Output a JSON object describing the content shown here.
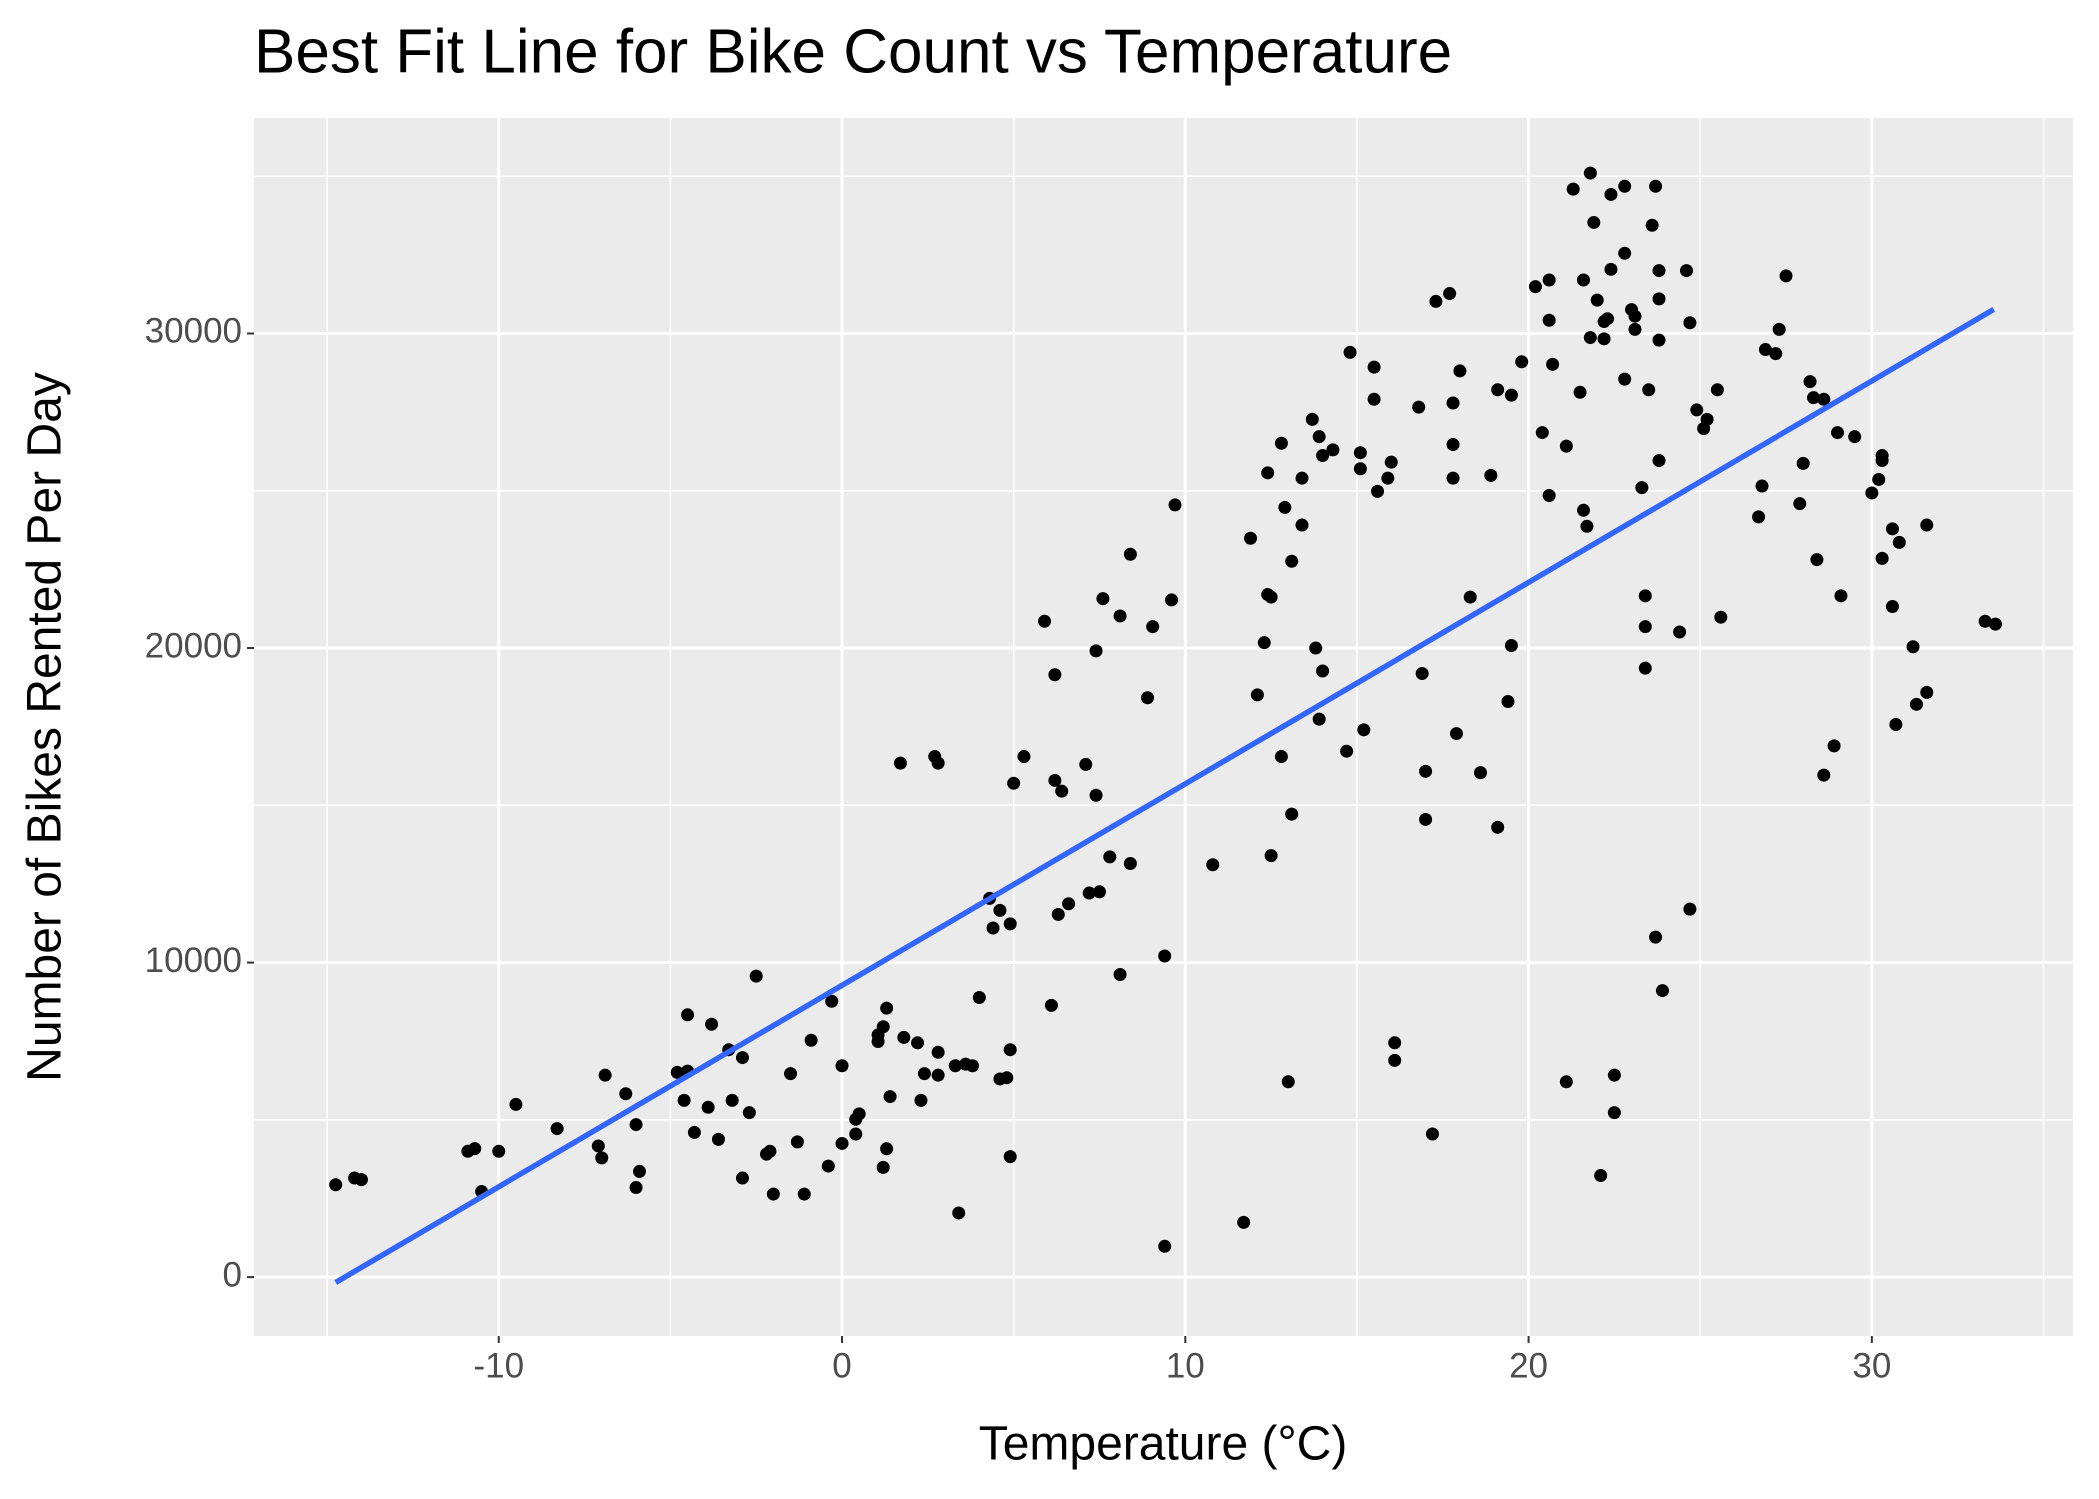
{
  "chart_data": {
    "type": "scatter",
    "title": "Best Fit Line for Bike Count vs Temperature",
    "x_label": "Temperature (°C)",
    "y_label": "Number of Bikes Rented Per Day",
    "xlim": [
      -17.13,
      35.86
    ],
    "ylim": [
      -1872,
      36851
    ],
    "xticks": [
      -10,
      0,
      10,
      20,
      30
    ],
    "yticks": [
      0,
      10000,
      20000,
      30000
    ],
    "grid": true,
    "color": "#000000",
    "x": [
      -14.75,
      -14.2,
      -14.0,
      -10.9,
      -10.7,
      -10.5,
      -10.0,
      -9.5,
      -8.3,
      -7.1,
      -7.0,
      -6.9,
      -6.3,
      -6.0,
      -5.9,
      -6.0,
      -4.8,
      -4.5,
      -4.5,
      -4.6,
      -4.3,
      -3.8,
      -3.9,
      -3.6,
      -3.3,
      -3.2,
      -2.9,
      -2.9,
      -2.7,
      -2.5,
      -2.2,
      -2.1,
      -2.0,
      -1.5,
      -1.3,
      -1.1,
      -0.9,
      -0.4,
      -0.3,
      0.0,
      0.0,
      0.4,
      0.5,
      0.4,
      1.05,
      1.05,
      1.2,
      1.2,
      1.3,
      1.3,
      1.4,
      1.7,
      1.8,
      2.2,
      2.3,
      2.4,
      2.7,
      2.8,
      2.8,
      2.8,
      3.3,
      3.4,
      3.6,
      3.8,
      4.0,
      4.3,
      4.4,
      4.6,
      4.6,
      4.8,
      4.9,
      4.9,
      4.9,
      5.0,
      5.3,
      5.9,
      6.1,
      6.2,
      6.2,
      6.4,
      6.3,
      6.6,
      7.1,
      7.2,
      7.4,
      7.4,
      7.5,
      7.6,
      7.8,
      8.1,
      8.1,
      8.4,
      8.4,
      8.9,
      9.05,
      9.4,
      9.4,
      9.6,
      9.7,
      10.8,
      11.7,
      11.9,
      12.1,
      12.3,
      12.4,
      12.5,
      12.4,
      12.5,
      12.8,
      12.8,
      12.9,
      13.0,
      13.1,
      13.1,
      13.4,
      13.4,
      13.7,
      13.8,
      13.9,
      13.9,
      14.0,
      14.0,
      14.3,
      14.7,
      14.8,
      15.1,
      15.1,
      15.2,
      15.5,
      15.5,
      15.6,
      15.9,
      16.0,
      16.1,
      16.1,
      16.8,
      16.9,
      17.0,
      17.0,
      17.2,
      17.3,
      17.7,
      17.8,
      17.8,
      17.8,
      17.9,
      18.0,
      18.3,
      18.6,
      18.9,
      19.1,
      19.1,
      19.4,
      19.5,
      19.5,
      19.8,
      20.2,
      20.4,
      20.6,
      20.6,
      20.7,
      20.6,
      21.1,
      21.1,
      21.3,
      21.5,
      21.6,
      21.6,
      21.7,
      21.8,
      21.8,
      21.9,
      22.0,
      22.1,
      22.2,
      22.2,
      22.3,
      22.4,
      22.4,
      22.5,
      22.5,
      22.8,
      22.8,
      22.8,
      23.0,
      23.1,
      23.1,
      23.3,
      23.4,
      23.4,
      23.4,
      23.5,
      23.6,
      23.7,
      23.7,
      23.8,
      23.8,
      23.8,
      23.8,
      23.9,
      24.4,
      24.6,
      24.7,
      24.7,
      24.9,
      25.1,
      25.2,
      25.5,
      25.6,
      26.7,
      26.8,
      26.9,
      27.2,
      27.3,
      27.5,
      27.9,
      28.0,
      28.2,
      28.4,
      28.3,
      28.6,
      28.6,
      28.9,
      29.0,
      29.1,
      29.5,
      30.0,
      30.2,
      30.3,
      30.3,
      30.3,
      30.6,
      30.6,
      30.7,
      30.8,
      31.2,
      31.3,
      31.6,
      31.6,
      33.3,
      33.6
    ],
    "values": [
      2936,
      3150,
      3100,
      4000,
      4085,
      2720,
      4000,
      5490,
      4720,
      4170,
      3790,
      6420,
      5830,
      4850,
      3360,
      2850,
      6510,
      6550,
      8340,
      5620,
      4600,
      8040,
      5400,
      4380,
      7230,
      5620,
      6980,
      3150,
      5230,
      9570,
      3910,
      4000,
      2640,
      6470,
      4300,
      2640,
      7530,
      3530,
      8770,
      6720,
      4250,
      5020,
      5190,
      4550,
      7700,
      7490,
      7960,
      3490,
      4080,
      8550,
      5740,
      16340,
      7620,
      7450,
      5620,
      6470,
      16550,
      16340,
      7150,
      6420,
      6720,
      2040,
      6770,
      6720,
      8890,
      12040,
      11100,
      11660,
      6300,
      6340,
      11230,
      7230,
      3830,
      15700,
      16550,
      20850,
      8640,
      19150,
      15790,
      15450,
      11530,
      11870,
      16300,
      12210,
      15320,
      19910,
      12250,
      21570,
      13360,
      21020,
      9620,
      22980,
      13150,
      18420,
      20680,
      980,
      10210,
      21530,
      24550,
      13110,
      1740,
      23490,
      18510,
      20170,
      21700,
      21620,
      25570,
      13400,
      16550,
      26510,
      24470,
      6210,
      22760,
      14720,
      23910,
      25400,
      27270,
      20000,
      17740,
      26720,
      19270,
      26120,
      26300,
      16720,
      29400,
      26210,
      25700,
      17400,
      28930,
      27910,
      24980,
      25400,
      25910,
      7450,
      6890,
      27660,
      19190,
      16080,
      14550,
      4550,
      31020,
      31270,
      27790,
      26470,
      25400,
      17280,
      28810,
      21620,
      16040,
      25490,
      28210,
      14300,
      18300,
      20080,
      28040,
      29100,
      31490,
      26850,
      31700,
      24850,
      29020,
      30420,
      26420,
      6210,
      34590,
      28130,
      24380,
      31700,
      23870,
      35100,
      29870,
      33530,
      31060,
      3230,
      30380,
      29830,
      30470,
      34420,
      32040,
      6420,
      5230,
      34680,
      32550,
      28550,
      30760,
      30130,
      30550,
      25100,
      19360,
      20680,
      21660,
      28210,
      33440,
      10810,
      34680,
      25960,
      32000,
      29790,
      31100,
      9110,
      20510,
      32000,
      11700,
      30340,
      27570,
      26980,
      27270,
      28210,
      20980,
      24170,
      25150,
      29490,
      29360,
      30130,
      31830,
      24590,
      25870,
      28470,
      22810,
      27960,
      27910,
      15960,
      16890,
      26850,
      21660,
      26720,
      24930,
      25360,
      26120,
      25960,
      22850,
      23790,
      21320,
      17570,
      23360,
      20040,
      18210,
      23910,
      18590,
      20850,
      20760
    ],
    "fit_line": {
      "color": "#3366FF",
      "x": [
        -14.75,
        33.55
      ],
      "values": [
        -170,
        30766
      ]
    }
  }
}
